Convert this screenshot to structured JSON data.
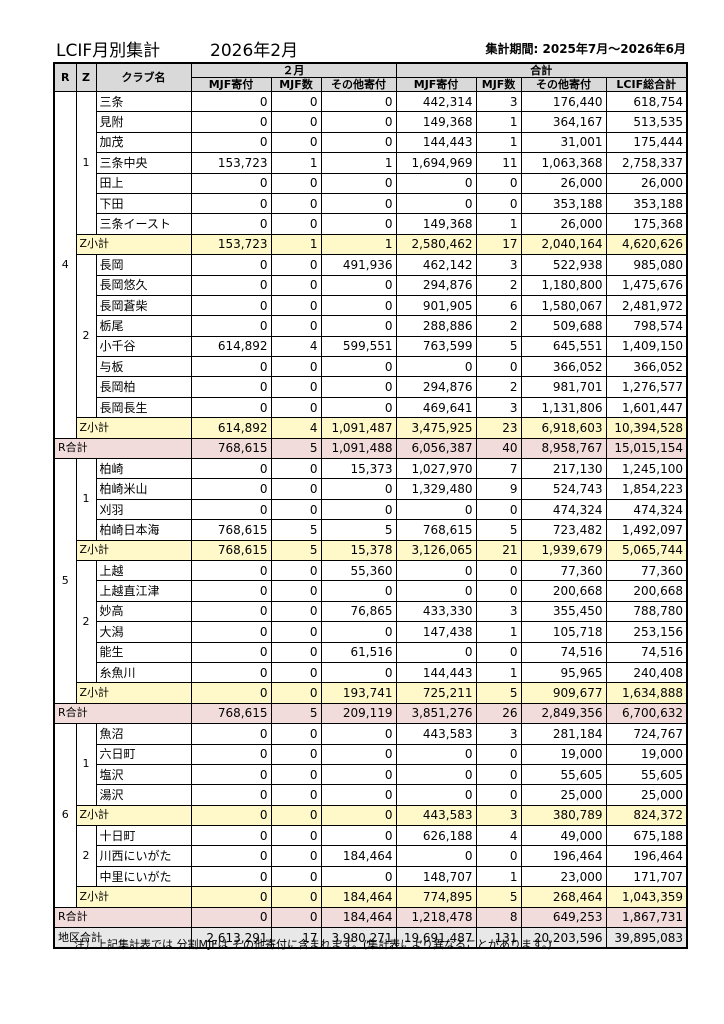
{
  "header": {
    "title": "LCIF月別集計",
    "month": "2026年2月",
    "period": "集計期間: 2025年7月～2026年6月"
  },
  "table": {
    "head": {
      "r": "R",
      "z": "Z",
      "club": "クラブ名",
      "month_group": "２月",
      "total_group": "合計",
      "cols": [
        "MJF寄付",
        "MJF数",
        "その他寄付",
        "MJF寄付",
        "MJF数",
        "その他寄付",
        "LCIF総合計"
      ]
    },
    "regions": [
      {
        "r": "4",
        "zones": [
          {
            "z": "1",
            "clubs": [
              {
                "name": "三条",
                "values": [
                  "0",
                  "0",
                  "0",
                  "442,314",
                  "3",
                  "176,440",
                  "618,754"
                ]
              },
              {
                "name": "見附",
                "values": [
                  "0",
                  "0",
                  "0",
                  "149,368",
                  "1",
                  "364,167",
                  "513,535"
                ]
              },
              {
                "name": "加茂",
                "values": [
                  "0",
                  "0",
                  "0",
                  "144,443",
                  "1",
                  "31,001",
                  "175,444"
                ]
              },
              {
                "name": "三条中央",
                "values": [
                  "153,723",
                  "1",
                  "1",
                  "1,694,969",
                  "11",
                  "1,063,368",
                  "2,758,337"
                ]
              },
              {
                "name": "田上",
                "values": [
                  "0",
                  "0",
                  "0",
                  "0",
                  "0",
                  "26,000",
                  "26,000"
                ]
              },
              {
                "name": "下田",
                "values": [
                  "0",
                  "0",
                  "0",
                  "0",
                  "0",
                  "353,188",
                  "353,188"
                ]
              },
              {
                "name": "三条イースト",
                "values": [
                  "0",
                  "0",
                  "0",
                  "149,368",
                  "1",
                  "26,000",
                  "175,368"
                ]
              }
            ],
            "subtotal": {
              "label": "Z小計",
              "values": [
                "153,723",
                "1",
                "1",
                "2,580,462",
                "17",
                "2,040,164",
                "4,620,626"
              ]
            }
          },
          {
            "z": "2",
            "clubs": [
              {
                "name": "長岡",
                "values": [
                  "0",
                  "0",
                  "491,936",
                  "462,142",
                  "3",
                  "522,938",
                  "985,080"
                ]
              },
              {
                "name": "長岡悠久",
                "values": [
                  "0",
                  "0",
                  "0",
                  "294,876",
                  "2",
                  "1,180,800",
                  "1,475,676"
                ]
              },
              {
                "name": "長岡蒼柴",
                "values": [
                  "0",
                  "0",
                  "0",
                  "901,905",
                  "6",
                  "1,580,067",
                  "2,481,972"
                ]
              },
              {
                "name": "栃尾",
                "values": [
                  "0",
                  "0",
                  "0",
                  "288,886",
                  "2",
                  "509,688",
                  "798,574"
                ]
              },
              {
                "name": "小千谷",
                "values": [
                  "614,892",
                  "4",
                  "599,551",
                  "763,599",
                  "5",
                  "645,551",
                  "1,409,150"
                ]
              },
              {
                "name": "与板",
                "values": [
                  "0",
                  "0",
                  "0",
                  "0",
                  "0",
                  "366,052",
                  "366,052"
                ]
              },
              {
                "name": "長岡柏",
                "values": [
                  "0",
                  "0",
                  "0",
                  "294,876",
                  "2",
                  "981,701",
                  "1,276,577"
                ]
              },
              {
                "name": "長岡長生",
                "values": [
                  "0",
                  "0",
                  "0",
                  "469,641",
                  "3",
                  "1,131,806",
                  "1,601,447"
                ]
              }
            ],
            "subtotal": {
              "label": "Z小計",
              "values": [
                "614,892",
                "4",
                "1,091,487",
                "3,475,925",
                "23",
                "6,918,603",
                "10,394,528"
              ]
            }
          }
        ],
        "total": {
          "label": "R合計",
          "values": [
            "768,615",
            "5",
            "1,091,488",
            "6,056,387",
            "40",
            "8,958,767",
            "15,015,154"
          ]
        }
      },
      {
        "r": "5",
        "zones": [
          {
            "z": "1",
            "clubs": [
              {
                "name": "柏崎",
                "values": [
                  "0",
                  "0",
                  "15,373",
                  "1,027,970",
                  "7",
                  "217,130",
                  "1,245,100"
                ]
              },
              {
                "name": "柏崎米山",
                "values": [
                  "0",
                  "0",
                  "0",
                  "1,329,480",
                  "9",
                  "524,743",
                  "1,854,223"
                ]
              },
              {
                "name": "刈羽",
                "values": [
                  "0",
                  "0",
                  "0",
                  "0",
                  "0",
                  "474,324",
                  "474,324"
                ]
              },
              {
                "name": "柏崎日本海",
                "values": [
                  "768,615",
                  "5",
                  "5",
                  "768,615",
                  "5",
                  "723,482",
                  "1,492,097"
                ]
              }
            ],
            "subtotal": {
              "label": "Z小計",
              "values": [
                "768,615",
                "5",
                "15,378",
                "3,126,065",
                "21",
                "1,939,679",
                "5,065,744"
              ]
            }
          },
          {
            "z": "2",
            "clubs": [
              {
                "name": "上越",
                "values": [
                  "0",
                  "0",
                  "55,360",
                  "0",
                  "0",
                  "77,360",
                  "77,360"
                ]
              },
              {
                "name": "上越直江津",
                "values": [
                  "0",
                  "0",
                  "0",
                  "0",
                  "0",
                  "200,668",
                  "200,668"
                ]
              },
              {
                "name": "妙高",
                "values": [
                  "0",
                  "0",
                  "76,865",
                  "433,330",
                  "3",
                  "355,450",
                  "788,780"
                ]
              },
              {
                "name": "大潟",
                "values": [
                  "0",
                  "0",
                  "0",
                  "147,438",
                  "1",
                  "105,718",
                  "253,156"
                ]
              },
              {
                "name": "能生",
                "values": [
                  "0",
                  "0",
                  "61,516",
                  "0",
                  "0",
                  "74,516",
                  "74,516"
                ]
              },
              {
                "name": "糸魚川",
                "values": [
                  "0",
                  "0",
                  "0",
                  "144,443",
                  "1",
                  "95,965",
                  "240,408"
                ]
              }
            ],
            "subtotal": {
              "label": "Z小計",
              "values": [
                "0",
                "0",
                "193,741",
                "725,211",
                "5",
                "909,677",
                "1,634,888"
              ]
            }
          }
        ],
        "total": {
          "label": "R合計",
          "values": [
            "768,615",
            "5",
            "209,119",
            "3,851,276",
            "26",
            "2,849,356",
            "6,700,632"
          ]
        }
      },
      {
        "r": "6",
        "zones": [
          {
            "z": "1",
            "clubs": [
              {
                "name": "魚沼",
                "values": [
                  "0",
                  "0",
                  "0",
                  "443,583",
                  "3",
                  "281,184",
                  "724,767"
                ]
              },
              {
                "name": "六日町",
                "values": [
                  "0",
                  "0",
                  "0",
                  "0",
                  "0",
                  "19,000",
                  "19,000"
                ]
              },
              {
                "name": "塩沢",
                "values": [
                  "0",
                  "0",
                  "0",
                  "0",
                  "0",
                  "55,605",
                  "55,605"
                ]
              },
              {
                "name": "湯沢",
                "values": [
                  "0",
                  "0",
                  "0",
                  "0",
                  "0",
                  "25,000",
                  "25,000"
                ]
              }
            ],
            "subtotal": {
              "label": "Z小計",
              "values": [
                "0",
                "0",
                "0",
                "443,583",
                "3",
                "380,789",
                "824,372"
              ]
            }
          },
          {
            "z": "2",
            "clubs": [
              {
                "name": "十日町",
                "values": [
                  "0",
                  "0",
                  "0",
                  "626,188",
                  "4",
                  "49,000",
                  "675,188"
                ]
              },
              {
                "name": "川西にいがた",
                "values": [
                  "0",
                  "0",
                  "184,464",
                  "0",
                  "0",
                  "196,464",
                  "196,464"
                ]
              },
              {
                "name": "中里にいがた",
                "values": [
                  "0",
                  "0",
                  "0",
                  "148,707",
                  "1",
                  "23,000",
                  "171,707"
                ]
              }
            ],
            "subtotal": {
              "label": "Z小計",
              "values": [
                "0",
                "0",
                "184,464",
                "774,895",
                "5",
                "268,464",
                "1,043,359"
              ]
            }
          }
        ],
        "total": {
          "label": "R合計",
          "values": [
            "0",
            "0",
            "184,464",
            "1,218,478",
            "8",
            "649,253",
            "1,867,731"
          ]
        }
      }
    ],
    "grand": {
      "label": "地区合計",
      "values": [
        "2,613,291",
        "17",
        "3,980,271",
        "19,691,487",
        "131",
        "20,203,596",
        "39,895,083"
      ]
    }
  },
  "note": "注）上記集計表では 分割MJFは その他寄付に含まれます。(集計表により異なることがあります。)"
}
